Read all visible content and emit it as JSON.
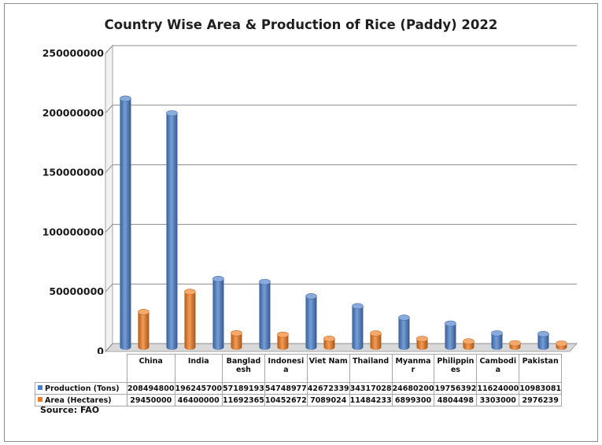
{
  "chart_data": {
    "type": "bar",
    "title": "Country Wise Area & Production of Rice (Paddy) 2022",
    "categories": [
      "China",
      "India",
      "Banglad esh",
      "Indonesi a",
      "Viet Nam",
      "Thailand",
      "Myanma r",
      "Philippin es",
      "Cambodi a",
      "Pakistan"
    ],
    "series": [
      {
        "name": "Production (Tons)",
        "color": "#4a7ec9",
        "values": [
          208494800,
          196245700,
          57189193,
          54748977,
          42672339,
          34317028,
          24680200,
          19756392,
          11624000,
          10983081
        ],
        "labels": [
          "208494800",
          "196245700",
          "57189193",
          "54748977",
          "42672339",
          "34317028",
          "24680200",
          "19756392",
          "11624000",
          "10983081"
        ]
      },
      {
        "name": "Area (Hectares)",
        "color": "#f07a1e",
        "values": [
          29450000,
          46400000,
          11692365,
          10452672,
          7089024,
          11484233,
          6899300,
          4804498,
          3303000,
          2976239
        ],
        "labels": [
          "29450000",
          "46400000",
          "11692365",
          "10452672",
          "7089024",
          "11484233",
          "6899300",
          "4804498",
          "3303000",
          "2976239"
        ]
      }
    ],
    "yticks": [
      "0",
      "50000000",
      "100000000",
      "150000000",
      "200000000",
      "250000000"
    ],
    "ylim": [
      0,
      250000000
    ],
    "grid": true,
    "legend": "data table rows below chart"
  },
  "source": "Source: FAO"
}
